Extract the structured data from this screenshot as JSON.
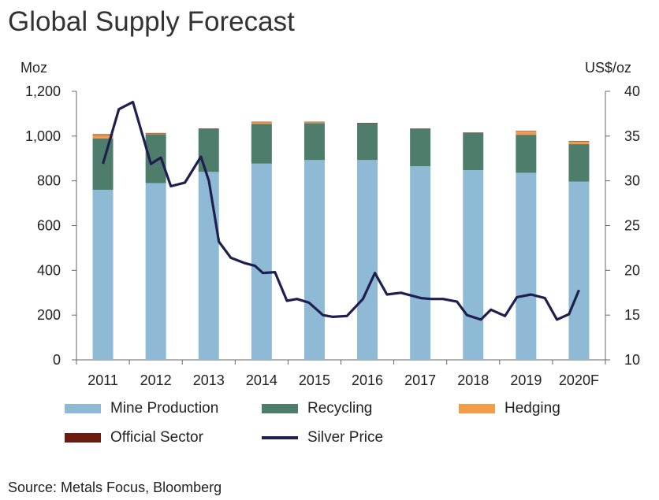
{
  "title": "Global Supply Forecast",
  "source": "Source: Metals Focus, Bloomberg",
  "chart_data": {
    "type": "bar",
    "stacked": true,
    "categories": [
      "2011",
      "2012",
      "2013",
      "2014",
      "2015",
      "2016",
      "2017",
      "2018",
      "2019",
      "2020F"
    ],
    "left_axis": {
      "unit": "Moz",
      "min": 0,
      "max": 1200,
      "ticks": [
        0,
        200,
        400,
        600,
        800,
        1000,
        1200
      ],
      "tick_labels": [
        "0",
        "200",
        "400",
        "600",
        "800",
        "1,000",
        "1,200"
      ]
    },
    "right_axis": {
      "unit": "US$/oz",
      "min": 10,
      "max": 40,
      "ticks": [
        10,
        15,
        20,
        25,
        30,
        35,
        40
      ],
      "tick_labels": [
        "10",
        "15",
        "20",
        "25",
        "30",
        "35",
        "40"
      ]
    },
    "series": [
      {
        "name": "Mine Production",
        "color": "#8fbad5",
        "values": [
          760,
          790,
          840,
          877,
          893,
          893,
          865,
          848,
          836,
          797
        ]
      },
      {
        "name": "Recycling",
        "color": "#4f7d6b",
        "values": [
          230,
          218,
          192,
          177,
          165,
          164,
          167,
          166,
          170,
          167
        ]
      },
      {
        "name": "Hedging",
        "color": "#f39c4a",
        "values": [
          15,
          4,
          0,
          8,
          4,
          0,
          0,
          0,
          15,
          12
        ]
      },
      {
        "name": "Official Sector",
        "color": "#6b1c10",
        "values": [
          3,
          2,
          2,
          2,
          2,
          2,
          2,
          2,
          2,
          2
        ]
      }
    ],
    "line": {
      "name": "Silver Price",
      "color": "#1f1f4f",
      "axis": "right",
      "x": [
        0.0,
        0.4,
        0.75,
        1.2,
        1.45,
        1.7,
        2.05,
        2.45,
        2.65,
        2.9,
        3.2,
        3.55,
        3.8,
        4.0,
        4.3,
        4.6,
        4.85,
        5.15,
        5.5,
        5.75,
        6.1,
        6.5,
        6.8,
        7.1,
        7.45,
        7.7,
        7.95,
        8.2,
        8.5,
        8.85,
        9.1,
        9.45,
        9.7,
        10.05
      ],
      "y": [
        31.9,
        38.0,
        38.8,
        31.9,
        32.6,
        29.4,
        29.8,
        32.7,
        30.0,
        23.2,
        21.4,
        20.8,
        20.5,
        19.7,
        19.8,
        16.6,
        16.8,
        16.4,
        15.0,
        14.8,
        14.9,
        16.8,
        19.7,
        17.3,
        17.5,
        17.2,
        16.9,
        16.8,
        16.8,
        16.5,
        15.0,
        14.5,
        15.6,
        14.9
      ]
    },
    "line_tail": {
      "x": [
        10.05,
        10.35,
        10.7,
        11.05,
        11.35,
        11.65
      ],
      "y": [
        14.9,
        17.0,
        17.3,
        16.9,
        14.5,
        15.1
      ]
    },
    "line_end": {
      "x": [
        11.65,
        11.9
      ],
      "y": [
        15.1,
        17.8
      ]
    }
  },
  "legend": {
    "items": [
      {
        "label": "Mine Production",
        "color": "#8fbad5",
        "kind": "box"
      },
      {
        "label": "Recycling",
        "color": "#4f7d6b",
        "kind": "box"
      },
      {
        "label": "Hedging",
        "color": "#f39c4a",
        "kind": "box"
      },
      {
        "label": "Official Sector",
        "color": "#6b1c10",
        "kind": "box"
      },
      {
        "label": "Silver Price",
        "color": "#1f1f4f",
        "kind": "line"
      }
    ]
  }
}
